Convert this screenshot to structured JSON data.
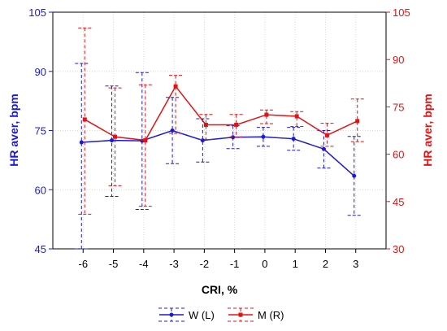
{
  "chart_data": {
    "type": "line",
    "title": "",
    "xlabel": "CRI, %",
    "ylabel_left": "HR aver, bpm",
    "ylabel_right": "HR aver, bpm",
    "categories": [
      "-6",
      "-5",
      "-4",
      "-3",
      "-2",
      "-1",
      "0",
      "1",
      "2",
      "3"
    ],
    "x": [
      -6,
      -5,
      -4,
      -3,
      -2,
      -1,
      0,
      1,
      2,
      3
    ],
    "xlim": [
      -7,
      4
    ],
    "ylim_left": [
      45,
      105
    ],
    "ylim_right": [
      30,
      105
    ],
    "yticks_left": [
      45,
      60,
      75,
      90,
      105
    ],
    "yticks_right": [
      30,
      45,
      60,
      75,
      90,
      105
    ],
    "grid": true,
    "legend_position": "bottom",
    "series": [
      {
        "name": "W (L)",
        "axis": "left",
        "color": "#1a1ad6",
        "values": [
          72.0,
          72.5,
          72.4,
          75.0,
          72.5,
          73.3,
          73.4,
          72.9,
          70.3,
          63.5
        ],
        "err_low": [
          45.0,
          58.3,
          55.0,
          66.6,
          67.0,
          70.4,
          71.0,
          70.0,
          65.5,
          53.5
        ],
        "err_high": [
          92.0,
          86.3,
          89.7,
          83.4,
          78.0,
          76.2,
          75.8,
          75.8,
          75.0,
          73.5
        ]
      },
      {
        "name": "M (R)",
        "axis": "right",
        "color": "#e01414",
        "values": [
          71.0,
          65.5,
          64.4,
          81.5,
          69.3,
          69.3,
          72.5,
          72.0,
          66.0,
          70.5
        ],
        "err_low": [
          41.0,
          50.0,
          43.5,
          66.6,
          64.7,
          65.5,
          69.7,
          68.8,
          62.5,
          64.0
        ],
        "err_high": [
          100.0,
          81.0,
          82.0,
          85.0,
          72.6,
          72.6,
          74.0,
          73.5,
          69.8,
          77.5
        ]
      }
    ]
  }
}
